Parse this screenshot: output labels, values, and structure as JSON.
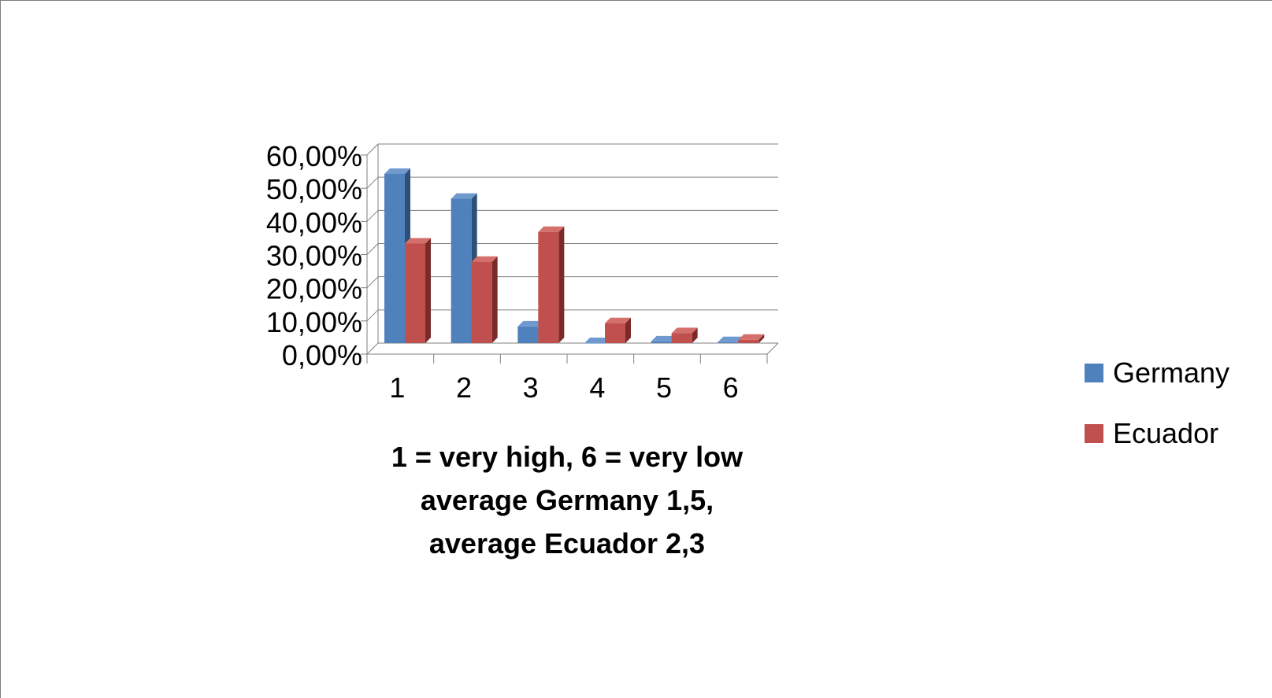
{
  "chart_data": {
    "type": "bar",
    "title": "",
    "categories": [
      "1",
      "2",
      "3",
      "4",
      "5",
      "6"
    ],
    "series": [
      {
        "name": "Germany",
        "values": [
          0.51,
          0.435,
          0.05,
          0.0,
          0.005,
          0.003
        ]
      },
      {
        "name": "Ecuador",
        "values": [
          0.3,
          0.245,
          0.335,
          0.06,
          0.03,
          0.01
        ]
      }
    ],
    "xlabel_lines": [
      "1 = very high, 6 = very low",
      "average Germany 1,5,",
      "average Ecuador 2,3"
    ],
    "ylabel": "",
    "ylim": [
      0,
      0.6
    ],
    "y_ticks": [
      "0,00%",
      "10,00%",
      "20,00%",
      "30,00%",
      "40,00%",
      "50,00%",
      "60,00%"
    ],
    "grid": true,
    "legend_position": "right",
    "colors": {
      "Germany": {
        "front": "#4f81bd",
        "side": "#2e4f78",
        "top": "#6f9ad0"
      },
      "Ecuador": {
        "front": "#c0504d",
        "side": "#7a2b29",
        "top": "#d46f6c"
      },
      "grid": "#808080"
    }
  }
}
